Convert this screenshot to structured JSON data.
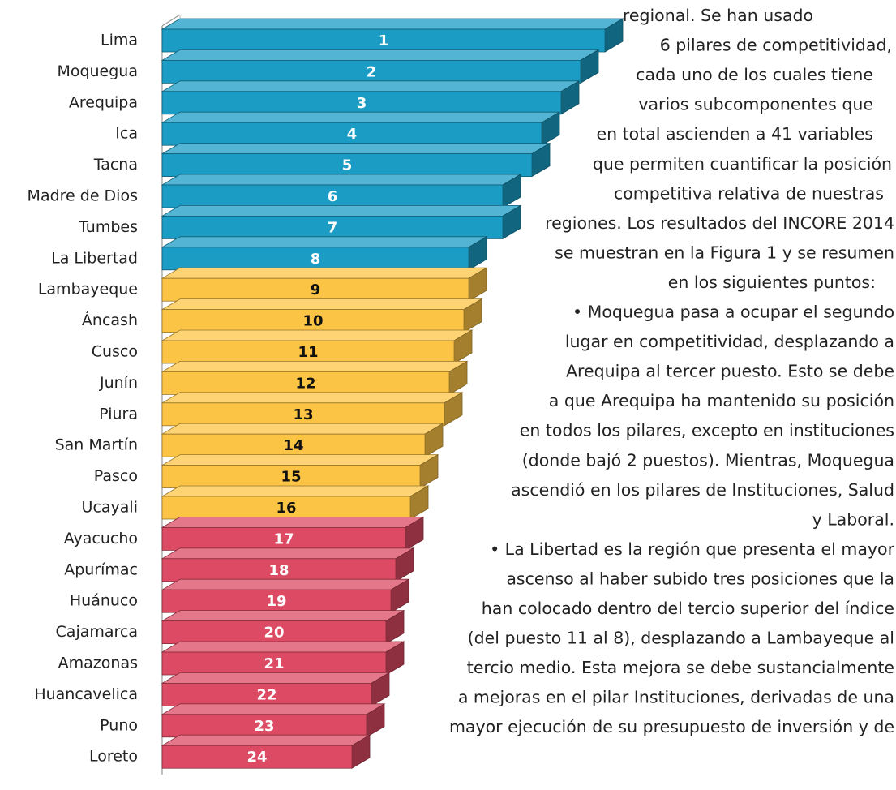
{
  "chart_data": {
    "type": "bar",
    "categories": [
      "Lima",
      "Moquegua",
      "Arequipa",
      "Ica",
      "Tacna",
      "Madre de Dios",
      "Tumbes",
      "La Libertad",
      "Lambayeque",
      "Áncash",
      "Cusco",
      "Junín",
      "Piura",
      "San Martín",
      "Pasco",
      "Ucayali",
      "Ayacucho",
      "Apurímac",
      "Huánuco",
      "Cajamarca",
      "Amazonas",
      "Huancavelica",
      "Puno",
      "Loreto"
    ],
    "values": [
      91,
      86,
      82,
      78,
      76,
      70,
      70,
      63,
      63,
      62,
      60,
      59,
      58,
      54,
      53,
      51,
      50,
      48,
      47,
      46,
      46,
      43,
      42,
      39
    ],
    "value_labels": [
      "1",
      "2",
      "3",
      "4",
      "5",
      "6",
      "7",
      "8",
      "9",
      "10",
      "11",
      "12",
      "13",
      "14",
      "15",
      "16",
      "17",
      "18",
      "19",
      "20",
      "21",
      "22",
      "23",
      "24"
    ],
    "colors": [
      "#1a9cc4",
      "#1a9cc4",
      "#1a9cc4",
      "#1a9cc4",
      "#1a9cc4",
      "#1a9cc4",
      "#1a9cc4",
      "#1a9cc4",
      "#fcc445",
      "#fcc445",
      "#fcc445",
      "#fcc445",
      "#fcc445",
      "#fcc445",
      "#fcc445",
      "#fcc445",
      "#dc4a63",
      "#dc4a63",
      "#dc4a63",
      "#dc4a63",
      "#dc4a63",
      "#dc4a63",
      "#dc4a63",
      "#dc4a63"
    ],
    "xlim": [
      0,
      100
    ]
  },
  "text": {
    "lines": [
      "regional. Se han usado",
      "6 pilares de competitividad,",
      "cada uno de los cuales tiene",
      "varios  subcomponentes que",
      "en total ascienden a 41 variables",
      "que permiten cuantificar la posición",
      "competitiva relativa de nuestras",
      "regiones. Los resultados del INCORE 2014",
      "se muestran en la Figura 1 y se resumen",
      "en los siguientes puntos:",
      "• Moquegua pasa a ocupar el segundo",
      "lugar en competitividad, desplazando a",
      "Arequipa al tercer puesto. Esto se debe",
      "a que Arequipa ha mantenido su posición",
      "en todos los pilares, excepto en instituciones",
      "(donde bajó 2 puestos). Mientras, Moquegua",
      "ascendió en los pilares de Instituciones, Salud",
      "y Laboral.",
      "• La Libertad es la región que presenta el mayor",
      "ascenso al haber subido tres posiciones que la",
      "han colocado dentro del tercio superior del índice",
      "(del puesto 11 al 8), desplazando a Lambayeque al",
      "tercio medio. Esta mejora se debe sustancialmente",
      "a mejoras en el pilar Instituciones, derivadas de una",
      "mayor ejecución de su presupuesto de inversión y de"
    ]
  }
}
